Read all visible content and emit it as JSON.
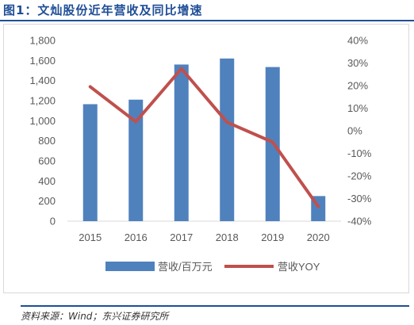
{
  "page": {
    "title": "图1：文灿股份近年营收及同比增速",
    "source": "资料来源：Wind；东兴证券研究所"
  },
  "chart_data": {
    "type": "bar",
    "categories": [
      "2015",
      "2016",
      "2017",
      "2018",
      "2019",
      "2020"
    ],
    "series": [
      {
        "name": "营收/百万元",
        "type": "bar",
        "axis": "left",
        "color": "#4f81bd",
        "values": [
          1165,
          1210,
          1560,
          1620,
          1535,
          250
        ]
      },
      {
        "name": "营收YOY",
        "type": "line",
        "axis": "right",
        "color": "#c0504d",
        "values": [
          19.5,
          4.0,
          27.5,
          3.8,
          -5.0,
          -33.5
        ]
      }
    ],
    "left_axis": {
      "ylim": [
        0,
        1800
      ],
      "ticks": [
        0,
        200,
        400,
        600,
        800,
        1000,
        1200,
        1400,
        1600,
        1800
      ],
      "tick_labels": [
        "0",
        "200",
        "400",
        "600",
        "800",
        "1,000",
        "1,200",
        "1,400",
        "1,600",
        "1,800"
      ]
    },
    "right_axis": {
      "ylim": [
        -40,
        40
      ],
      "ticks": [
        -40,
        -30,
        -20,
        -10,
        0,
        10,
        20,
        30,
        40
      ],
      "tick_labels": [
        "-40%",
        "-30%",
        "-20%",
        "-10%",
        "0%",
        "10%",
        "20%",
        "30%",
        "40%"
      ]
    },
    "grid": false,
    "legend": "bottom"
  }
}
